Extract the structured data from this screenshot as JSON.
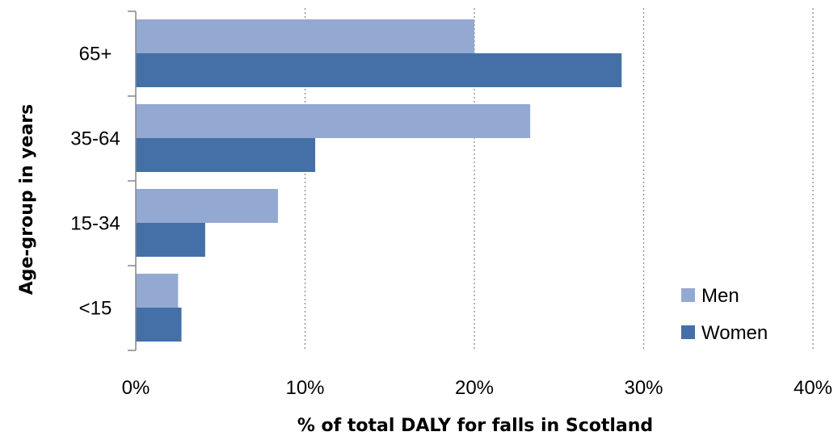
{
  "chart_data": {
    "type": "bar",
    "orientation": "horizontal",
    "categories": [
      "65+",
      "35-64",
      "15-34",
      "<15"
    ],
    "series": [
      {
        "name": "Men",
        "values": [
          20.0,
          23.3,
          8.4,
          2.5
        ],
        "color": "#94A9D1"
      },
      {
        "name": "Women",
        "values": [
          28.7,
          10.6,
          4.1,
          2.7
        ],
        "color": "#4470A7"
      }
    ],
    "xlabel": "% of total DALY for falls in Scotland",
    "ylabel": "Age-group in years",
    "xlim": [
      0,
      40
    ],
    "xticks": [
      "0%",
      "10%",
      "20%",
      "30%",
      "40%"
    ],
    "grid": "vertical-dotted",
    "legend_position": "bottom-right"
  }
}
